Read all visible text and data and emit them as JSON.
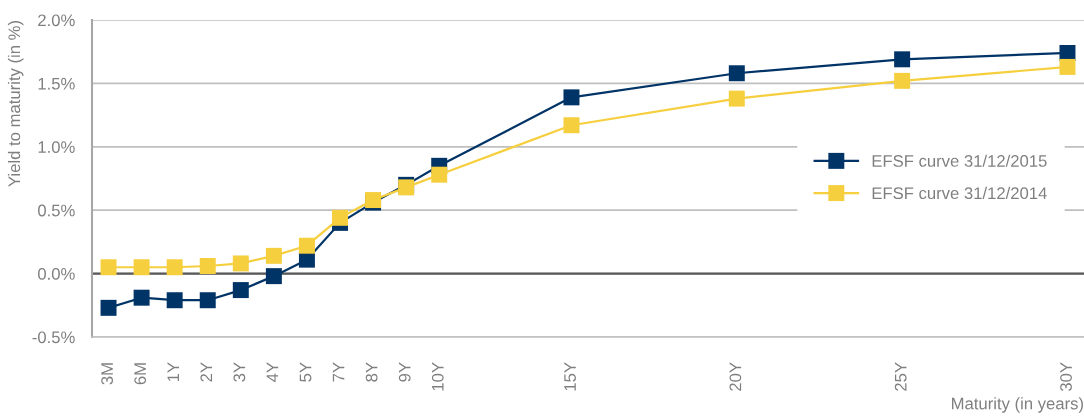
{
  "chart_data": {
    "type": "line",
    "xlabel": "Maturity (in years)",
    "ylabel": "Yield to maturity (in %)",
    "categories": [
      "3M",
      "6M",
      "1Y",
      "2Y",
      "3Y",
      "4Y",
      "5Y",
      "7Y",
      "8Y",
      "9Y",
      "10Y",
      null,
      null,
      null,
      "15Y",
      null,
      null,
      null,
      null,
      "20Y",
      null,
      null,
      null,
      null,
      "25Y",
      null,
      null,
      null,
      null,
      "30Y"
    ],
    "ylim": [
      -0.5,
      2.0
    ],
    "yticks": [
      {
        "value": -0.5,
        "label": "-0.5%"
      },
      {
        "value": 0.0,
        "label": "0.0%"
      },
      {
        "value": 0.5,
        "label": "0.5%"
      },
      {
        "value": 1.0,
        "label": "1.0%"
      },
      {
        "value": 1.5,
        "label": "1.5%"
      },
      {
        "value": 2.0,
        "label": "2.0%"
      }
    ],
    "grid": "y",
    "legend": "right",
    "marker": "square",
    "line_style": "solid",
    "ref_lines": [
      {
        "axis": "y",
        "value": 0,
        "color": "#595959"
      }
    ],
    "series": [
      {
        "name": "EFSF curve 31/12/2015",
        "color": "#003366",
        "values": [
          -0.27,
          -0.19,
          -0.21,
          -0.21,
          -0.13,
          -0.02,
          0.11,
          0.4,
          0.56,
          0.7,
          0.85,
          null,
          null,
          null,
          1.39,
          null,
          null,
          null,
          null,
          1.58,
          null,
          null,
          null,
          null,
          1.69,
          null,
          null,
          null,
          null,
          1.74
        ]
      },
      {
        "name": "EFSF curve 31/12/2014",
        "color": "#f6cf3f",
        "values": [
          0.05,
          0.05,
          0.05,
          0.06,
          0.08,
          0.14,
          0.22,
          0.44,
          0.58,
          0.68,
          0.78,
          null,
          null,
          null,
          1.17,
          null,
          null,
          null,
          null,
          1.38,
          null,
          null,
          null,
          null,
          1.52,
          null,
          null,
          null,
          null,
          1.63
        ]
      }
    ]
  }
}
